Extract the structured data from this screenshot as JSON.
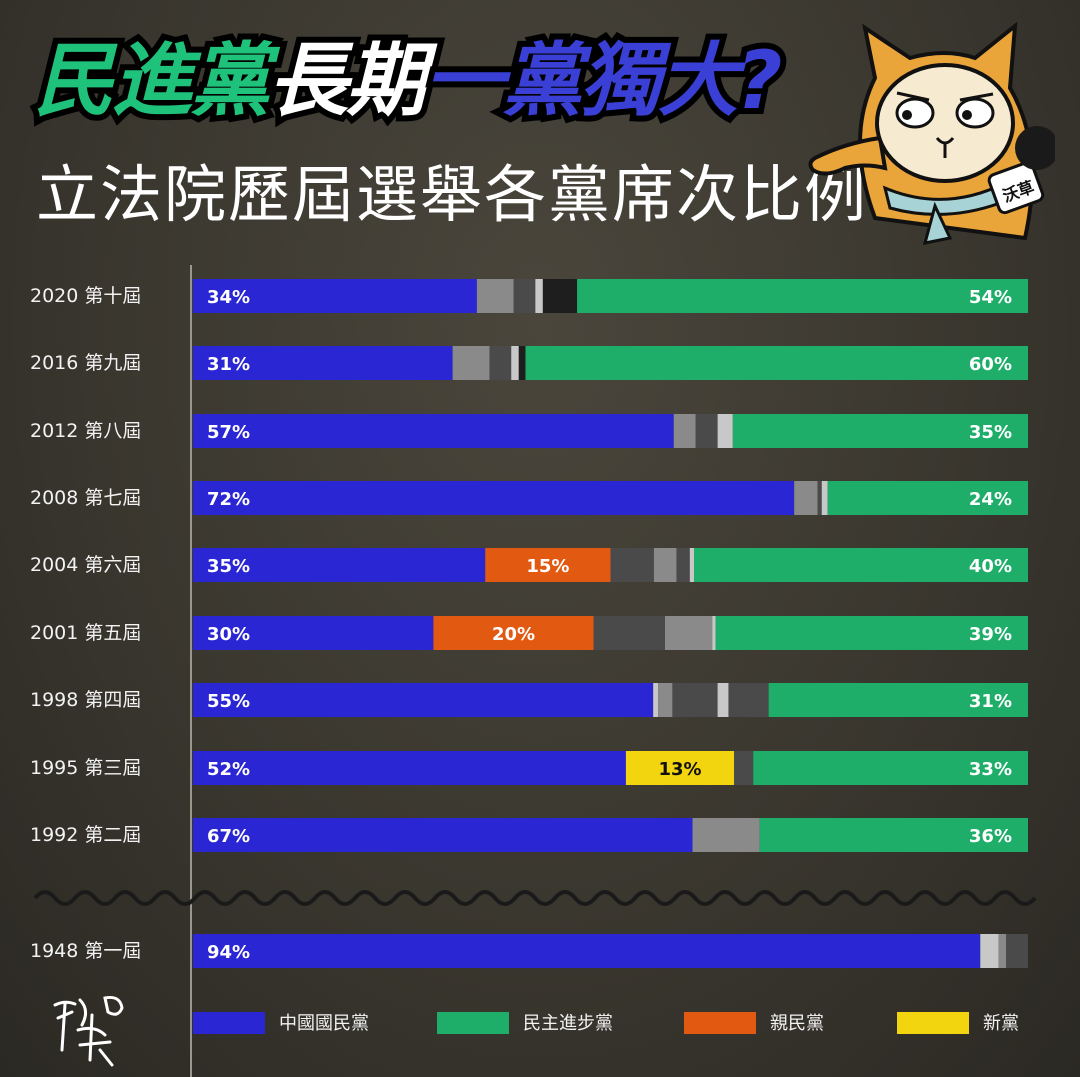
{
  "title": {
    "part1": "民進黨",
    "part2": "長期",
    "part3": "一黨獨大?",
    "subtitle": "立法院歷屆選舉各黨席次比例"
  },
  "colors": {
    "kmt": "#2a26d4",
    "dpp": "#1fae6a",
    "pfp": "#e25a12",
    "np": "#f2d50f",
    "others_light": "#8a8a8a",
    "others_mid": "#4a4a4a",
    "others_dark": "#1e1e1e",
    "others_pale": "#c8c8c8"
  },
  "chart_data": {
    "type": "bar",
    "orientation": "horizontal-stacked",
    "unit": "%",
    "categories": [
      "2020 第十屆",
      "2016 第九屆",
      "2012 第八屆",
      "2008 第七屆",
      "2004 第六屆",
      "2001 第五屆",
      "1998 第四屆",
      "1995 第三屆",
      "1992 第二屆",
      "1948 第一屆"
    ],
    "rows": [
      {
        "label": "2020 第十屆",
        "segments": [
          {
            "party": "kmt",
            "value": 34,
            "label": "34%"
          },
          {
            "party": "others_light",
            "value": 4.4
          },
          {
            "party": "others_mid",
            "value": 2.6
          },
          {
            "party": "others_pale",
            "value": 0.9
          },
          {
            "party": "others_dark",
            "value": 4.1
          },
          {
            "party": "dpp",
            "value": 54,
            "label": "54%"
          }
        ]
      },
      {
        "label": "2016 第九屆",
        "segments": [
          {
            "party": "kmt",
            "value": 31,
            "label": "31%"
          },
          {
            "party": "others_light",
            "value": 4.4
          },
          {
            "party": "others_mid",
            "value": 2.6
          },
          {
            "party": "others_pale",
            "value": 0.9
          },
          {
            "party": "others_dark",
            "value": 0.8
          },
          {
            "party": "dpp",
            "value": 60,
            "label": "60%"
          }
        ]
      },
      {
        "label": "2012 第八屆",
        "segments": [
          {
            "party": "kmt",
            "value": 57,
            "label": "57%"
          },
          {
            "party": "others_light",
            "value": 2.6
          },
          {
            "party": "others_mid",
            "value": 2.6
          },
          {
            "party": "others_pale",
            "value": 1.8
          },
          {
            "party": "dpp",
            "value": 35,
            "label": "35%"
          }
        ]
      },
      {
        "label": "2008 第七屆",
        "segments": [
          {
            "party": "kmt",
            "value": 72,
            "label": "72%"
          },
          {
            "party": "others_light",
            "value": 2.8
          },
          {
            "party": "others_mid",
            "value": 0.5
          },
          {
            "party": "others_pale",
            "value": 0.7
          },
          {
            "party": "dpp",
            "value": 24,
            "label": "24%"
          }
        ]
      },
      {
        "label": "2004 第六屆",
        "segments": [
          {
            "party": "kmt",
            "value": 35,
            "label": "35%"
          },
          {
            "party": "pfp",
            "value": 15,
            "label": "15%"
          },
          {
            "party": "others_mid",
            "value": 5.2
          },
          {
            "party": "others_light",
            "value": 2.7
          },
          {
            "party": "others_mid",
            "value": 1.6
          },
          {
            "party": "others_pale",
            "value": 0.5
          },
          {
            "party": "dpp",
            "value": 40,
            "label": "40%"
          }
        ]
      },
      {
        "label": "2001 第五屆",
        "segments": [
          {
            "party": "kmt",
            "value": 30,
            "label": "30%"
          },
          {
            "party": "pfp",
            "value": 20,
            "label": "20%"
          },
          {
            "party": "others_mid",
            "value": 8.9
          },
          {
            "party": "others_light",
            "value": 5.9
          },
          {
            "party": "others_pale",
            "value": 0.4
          },
          {
            "party": "dpp",
            "value": 39,
            "label": "39%"
          }
        ]
      },
      {
        "label": "1998 第四屆",
        "segments": [
          {
            "party": "kmt",
            "value": 55,
            "label": "55%"
          },
          {
            "party": "others_pale",
            "value": 0.6
          },
          {
            "party": "others_light",
            "value": 1.7
          },
          {
            "party": "others_mid",
            "value": 5.4
          },
          {
            "party": "others_pale",
            "value": 1.3
          },
          {
            "party": "others_mid",
            "value": 4.8
          },
          {
            "party": "dpp",
            "value": 31,
            "label": "31%"
          }
        ]
      },
      {
        "label": "1995 第三屆",
        "segments": [
          {
            "party": "kmt",
            "value": 52,
            "label": "52%"
          },
          {
            "party": "np",
            "value": 13,
            "label": "13%"
          },
          {
            "party": "others_mid",
            "value": 2.3
          },
          {
            "party": "dpp",
            "value": 33,
            "label": "33%"
          }
        ]
      },
      {
        "label": "1992 第二屆",
        "segments": [
          {
            "party": "kmt",
            "value": 67,
            "label": "67%"
          },
          {
            "party": "others_light",
            "value": 9
          },
          {
            "party": "dpp",
            "value": 36,
            "label": "36%"
          }
        ]
      },
      {
        "label": "1948 第一屆",
        "segments": [
          {
            "party": "kmt",
            "value": 94,
            "label": "94%"
          },
          {
            "party": "others_pale",
            "value": 2.2
          },
          {
            "party": "others_light",
            "value": 0.9
          },
          {
            "party": "others_mid",
            "value": 2.6
          }
        ]
      }
    ],
    "legend": [
      {
        "party": "kmt",
        "label": "中國國民黨"
      },
      {
        "party": "dpp",
        "label": "民主進步黨"
      },
      {
        "party": "pfp",
        "label": "親民黨"
      },
      {
        "party": "np",
        "label": "新黨"
      }
    ],
    "axis_break": "between 1992 第二屆 and 1948 第一屆"
  },
  "mascot": {
    "icon": "cat-reporter-mascot",
    "mic_text": "沃草"
  },
  "signature": {
    "icon": "wuchao-signature-logo",
    "text": "沃草"
  }
}
